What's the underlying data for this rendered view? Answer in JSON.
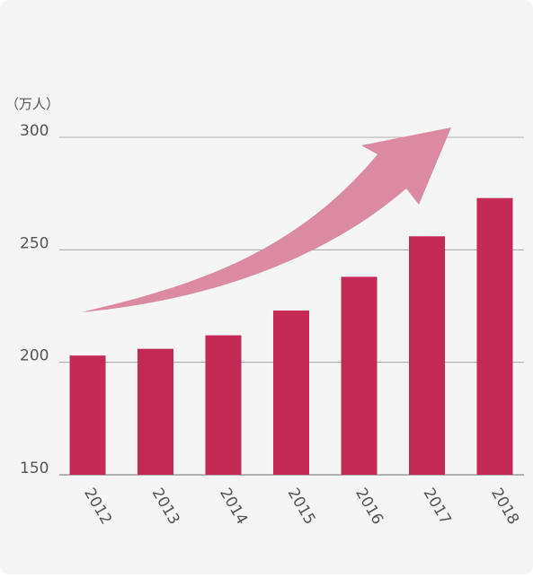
{
  "chart_data": {
    "type": "bar",
    "unit_label": "（万人）",
    "categories": [
      "2012",
      "2013",
      "2014",
      "2015",
      "2016",
      "2017",
      "2018"
    ],
    "values": [
      203,
      206,
      212,
      223,
      238,
      256,
      273
    ],
    "ylim": [
      150,
      300
    ],
    "yticks": [
      "150",
      "200",
      "250",
      "300"
    ],
    "grid": true,
    "colors": {
      "bar": "#c42a56",
      "arrow": "#db8aa2",
      "grid": "#999999",
      "axis": "#8a8a8a",
      "background": "#f5f5f5"
    },
    "annotation": "upward-trend-arrow"
  }
}
